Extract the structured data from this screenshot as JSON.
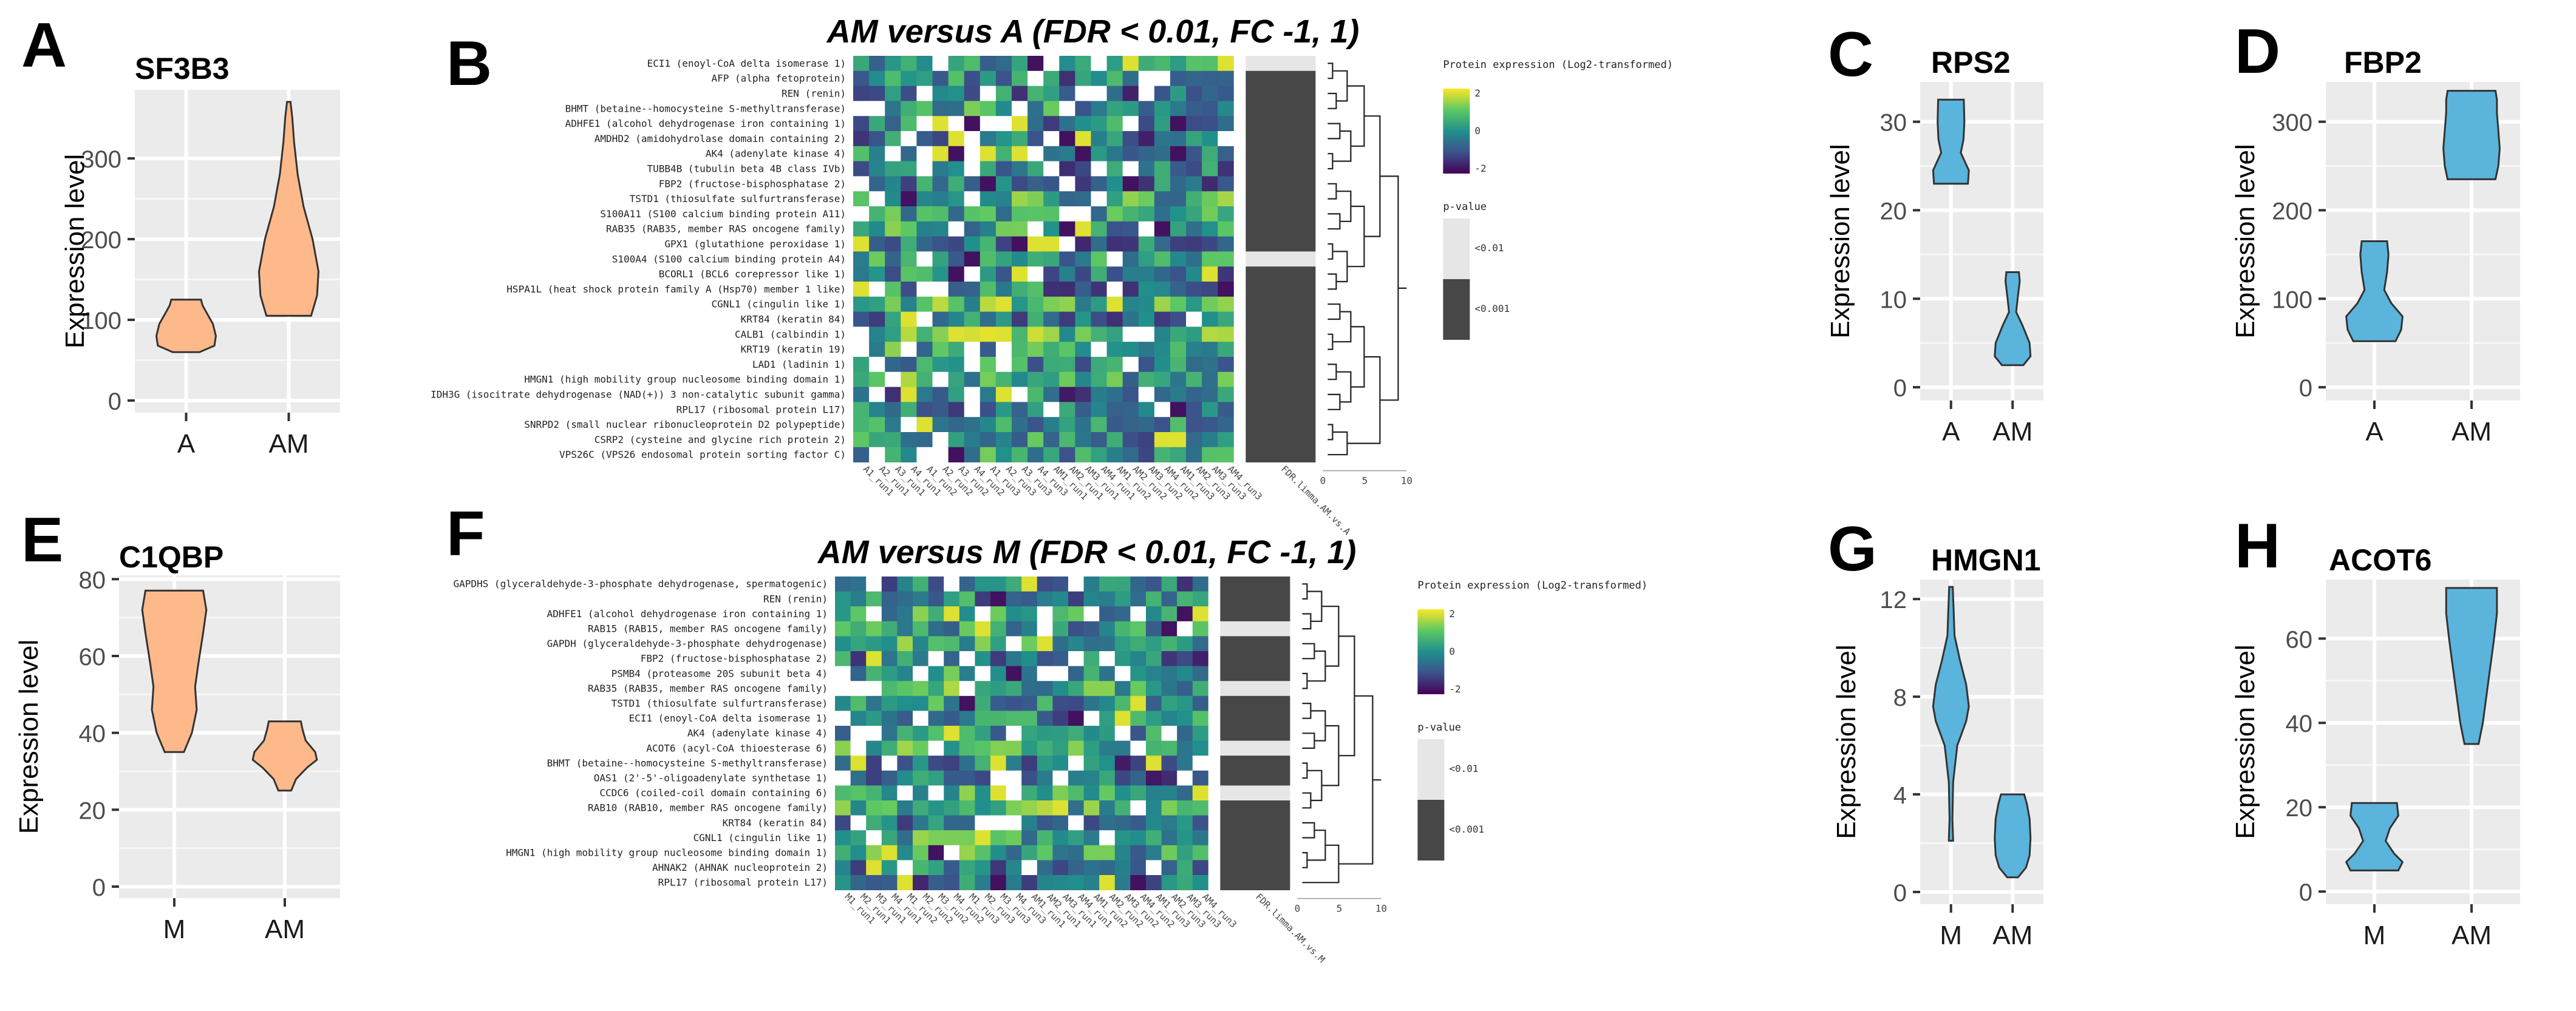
{
  "colors": {
    "orange": "#FDB98A",
    "blue": "#5AB4DC",
    "panel_bg": "#EBEBEB",
    "pvalue_light": "#E6E6E6",
    "pvalue_dark": "#474747",
    "heat_low": "#440154",
    "heat_mid": "#21908C",
    "heat_high": "#FDE725"
  },
  "chart_data": [
    {
      "type": "violin",
      "panel_letter": "A",
      "title": "SF3B3",
      "ylabel": "Expression level",
      "categories": [
        "A",
        "AM"
      ],
      "ylim": [
        -15,
        385
      ],
      "yticks": [
        0,
        100,
        200,
        300
      ],
      "color": "orange",
      "series": [
        {
          "name": "A",
          "min": 60,
          "max": 125,
          "profile": [
            [
              60,
              0.45
            ],
            [
              68,
              0.95
            ],
            [
              80,
              1.0
            ],
            [
              95,
              0.9
            ],
            [
              108,
              0.7
            ],
            [
              118,
              0.55
            ],
            [
              125,
              0.5
            ]
          ]
        },
        {
          "name": "AM",
          "min": 105,
          "max": 370,
          "profile": [
            [
              105,
              0.75
            ],
            [
              130,
              0.95
            ],
            [
              160,
              1.0
            ],
            [
              200,
              0.8
            ],
            [
              240,
              0.5
            ],
            [
              280,
              0.3
            ],
            [
              320,
              0.18
            ],
            [
              350,
              0.12
            ],
            [
              370,
              0.06
            ]
          ]
        }
      ]
    },
    {
      "type": "violin",
      "panel_letter": "C",
      "title": "RPS2",
      "ylabel": "Expression level",
      "categories": [
        "A",
        "AM"
      ],
      "ylim": [
        -1.5,
        34.5
      ],
      "yticks": [
        0,
        10,
        20,
        30
      ],
      "color": "blue",
      "series": [
        {
          "name": "A",
          "min": 23,
          "max": 32.5,
          "profile": [
            [
              23,
              0.95
            ],
            [
              24.5,
              1.0
            ],
            [
              26.5,
              0.55
            ],
            [
              28,
              0.7
            ],
            [
              30,
              0.75
            ],
            [
              32.5,
              0.72
            ]
          ]
        },
        {
          "name": "AM",
          "min": 2.5,
          "max": 13,
          "profile": [
            [
              2.5,
              0.6
            ],
            [
              3.5,
              1.0
            ],
            [
              5,
              0.95
            ],
            [
              7,
              0.55
            ],
            [
              8.5,
              0.2
            ],
            [
              10,
              0.28
            ],
            [
              12,
              0.4
            ],
            [
              13,
              0.35
            ]
          ]
        }
      ]
    },
    {
      "type": "violin",
      "panel_letter": "D",
      "title": "FBP2",
      "ylabel": "Expression level",
      "categories": [
        "A",
        "AM"
      ],
      "ylim": [
        -15,
        345
      ],
      "yticks": [
        0,
        100,
        200,
        300
      ],
      "color": "blue",
      "series": [
        {
          "name": "A",
          "min": 52,
          "max": 165,
          "profile": [
            [
              52,
              0.75
            ],
            [
              65,
              0.95
            ],
            [
              80,
              1.0
            ],
            [
              95,
              0.6
            ],
            [
              110,
              0.35
            ],
            [
              130,
              0.45
            ],
            [
              150,
              0.5
            ],
            [
              165,
              0.45
            ]
          ]
        },
        {
          "name": "AM",
          "min": 235,
          "max": 335,
          "profile": [
            [
              235,
              0.85
            ],
            [
              250,
              0.95
            ],
            [
              270,
              1.0
            ],
            [
              290,
              0.95
            ],
            [
              310,
              0.9
            ],
            [
              325,
              0.9
            ],
            [
              335,
              0.85
            ]
          ]
        }
      ]
    },
    {
      "type": "violin",
      "panel_letter": "E",
      "title": "C1QBP",
      "ylabel": "Expression level",
      "categories": [
        "M",
        "AM"
      ],
      "ylim": [
        -3,
        81
      ],
      "yticks": [
        0,
        20,
        40,
        60,
        80
      ],
      "color": "orange",
      "series": [
        {
          "name": "M",
          "min": 35,
          "max": 77,
          "profile": [
            [
              35,
              0.3
            ],
            [
              40,
              0.55
            ],
            [
              46,
              0.7
            ],
            [
              52,
              0.65
            ],
            [
              58,
              0.75
            ],
            [
              66,
              0.9
            ],
            [
              72,
              1.0
            ],
            [
              77,
              0.9
            ]
          ]
        },
        {
          "name": "AM",
          "min": 25,
          "max": 43,
          "profile": [
            [
              25,
              0.2
            ],
            [
              28,
              0.35
            ],
            [
              31,
              0.7
            ],
            [
              33,
              1.0
            ],
            [
              35,
              0.95
            ],
            [
              38,
              0.65
            ],
            [
              41,
              0.55
            ],
            [
              43,
              0.5
            ]
          ]
        }
      ]
    },
    {
      "type": "violin",
      "panel_letter": "G",
      "title": "HMGN1",
      "ylabel": "Expression level",
      "categories": [
        "M",
        "AM"
      ],
      "ylim": [
        -0.5,
        12.8
      ],
      "yticks": [
        0,
        4,
        8,
        12
      ],
      "color": "blue",
      "series": [
        {
          "name": "M",
          "min": 2.1,
          "max": 12.5,
          "profile": [
            [
              2.1,
              0.12
            ],
            [
              3,
              0.08
            ],
            [
              4.5,
              0.12
            ],
            [
              6,
              0.35
            ],
            [
              7,
              0.85
            ],
            [
              7.6,
              1.0
            ],
            [
              8.5,
              0.85
            ],
            [
              9.5,
              0.5
            ],
            [
              10.5,
              0.2
            ],
            [
              11.5,
              0.15
            ],
            [
              12.5,
              0.1
            ]
          ]
        },
        {
          "name": "AM",
          "min": 0.6,
          "max": 4,
          "profile": [
            [
              0.6,
              0.3
            ],
            [
              1,
              0.75
            ],
            [
              1.5,
              0.95
            ],
            [
              2.2,
              1.0
            ],
            [
              3,
              0.95
            ],
            [
              3.6,
              0.8
            ],
            [
              4,
              0.65
            ]
          ]
        }
      ]
    },
    {
      "type": "violin",
      "panel_letter": "H",
      "title": "ACOT6",
      "ylabel": "Expression level",
      "categories": [
        "M",
        "AM"
      ],
      "ylim": [
        -3,
        74
      ],
      "yticks": [
        0,
        20,
        40,
        60
      ],
      "color": "blue",
      "series": [
        {
          "name": "M",
          "min": 5,
          "max": 21,
          "profile": [
            [
              5,
              0.85
            ],
            [
              7,
              1.0
            ],
            [
              9,
              0.7
            ],
            [
              12,
              0.4
            ],
            [
              15,
              0.55
            ],
            [
              18,
              0.85
            ],
            [
              21,
              0.8
            ]
          ]
        },
        {
          "name": "AM",
          "min": 35,
          "max": 72,
          "profile": [
            [
              35,
              0.25
            ],
            [
              40,
              0.4
            ],
            [
              45,
              0.5
            ],
            [
              50,
              0.6
            ],
            [
              55,
              0.7
            ],
            [
              60,
              0.8
            ],
            [
              66,
              0.9
            ],
            [
              72,
              0.9
            ]
          ]
        }
      ]
    },
    {
      "type": "heatmap",
      "panel_letter": "B",
      "title": "AM versus A (FDR < 0.01, FC -1, 1)",
      "rows": [
        "ECI1 (enoyl-CoA delta isomerase 1)",
        "AFP (alpha fetoprotein)",
        "REN (renin)",
        "BHMT (betaine--homocysteine S-methyltransferase)",
        "ADHFE1 (alcohol dehydrogenase iron containing 1)",
        "AMDHD2 (amidohydrolase domain containing 2)",
        "AK4 (adenylate kinase 4)",
        "TUBB4B (tubulin beta 4B class IVb)",
        "FBP2 (fructose-bisphosphatase 2)",
        "TSTD1 (thiosulfate sulfurtransferase)",
        "S100A11 (S100 calcium binding protein A11)",
        "RAB35 (RAB35, member RAS oncogene family)",
        "GPX1 (glutathione peroxidase 1)",
        "S100A4 (S100 calcium binding protein A4)",
        "BCORL1 (BCL6 corepressor like 1)",
        "HSPA1L (heat shock protein family A (Hsp70) member 1 like)",
        "CGNL1 (cingulin like 1)",
        "KRT84 (keratin 84)",
        "CALB1 (calbindin 1)",
        "KRT19 (keratin 19)",
        "LAD1 (ladinin 1)",
        "HMGN1 (high mobility group nucleosome binding domain 1)",
        "IDH3G (isocitrate dehydrogenase (NAD(+)) 3 non-catalytic subunit gamma)",
        "RPL17 (ribosomal protein L17)",
        "SNRPD2 (small nuclear ribonucleoprotein D2 polypeptide)",
        "CSRP2 (cysteine and glycine rich protein 2)",
        "VPS26C (VPS26 endosomal protein sorting factor C)"
      ],
      "columns": [
        "A1_run1",
        "A2_run1",
        "A3_run1",
        "A4_run1",
        "A1_run2",
        "A2_run2",
        "A3_run2",
        "A4_run2",
        "A1_run3",
        "A2_run3",
        "A3_run3",
        "A4_run3",
        "AM1_run1",
        "AM2_run1",
        "AM3_run1",
        "AM4_run1",
        "AM1_run2",
        "AM2_run2",
        "AM3_run2",
        "AM4_run2",
        "AM1_run3",
        "AM2_run3",
        "AM3_run3",
        "AM4_run3"
      ],
      "pvalue_column_label": "FDR.limma.AM.vs.A",
      "pvalue_light_rows": [
        0,
        13
      ],
      "dendro_axis_ticks": [
        "0",
        "5",
        "10"
      ],
      "legend_title": "Protein expression (Log2-transformed)",
      "legend_ticks": [
        "2",
        "0",
        "-2"
      ],
      "pvalue_legend_title": "p-value",
      "pvalue_legend_labels": [
        "<0.01",
        "<0.001"
      ]
    },
    {
      "type": "heatmap",
      "panel_letter": "F",
      "title": "AM versus M (FDR < 0.01, FC -1, 1)",
      "rows": [
        "GAPDHS (glyceraldehyde-3-phosphate dehydrogenase, spermatogenic)",
        "REN (renin)",
        "ADHFE1 (alcohol dehydrogenase iron containing 1)",
        "RAB15 (RAB15, member RAS oncogene family)",
        "GAPDH (glyceraldehyde-3-phosphate dehydrogenase)",
        "FBP2 (fructose-bisphosphatase 2)",
        "PSMB4 (proteasome 20S subunit beta 4)",
        "RAB35 (RAB35, member RAS oncogene family)",
        "TSTD1 (thiosulfate sulfurtransferase)",
        "ECI1 (enoyl-CoA delta isomerase 1)",
        "AK4 (adenylate kinase 4)",
        "ACOT6 (acyl-CoA thioesterase 6)",
        "BHMT (betaine--homocysteine S-methyltransferase)",
        "OAS1 (2'-5'-oligoadenylate synthetase 1)",
        "CCDC6 (coiled-coil domain containing 6)",
        "RAB10 (RAB10, member RAS oncogene family)",
        "KRT84 (keratin 84)",
        "CGNL1 (cingulin like 1)",
        "HMGN1 (high mobility group nucleosome binding domain 1)",
        "AHNAK2 (AHNAK nucleoprotein 2)",
        "RPL17 (ribosomal protein L17)"
      ],
      "columns": [
        "M1_run1",
        "M2_run1",
        "M3_run1",
        "M4_run1",
        "M1_run2",
        "M2_run2",
        "M3_run2",
        "M4_run2",
        "M1_run3",
        "M2_run3",
        "M3_run3",
        "M4_run3",
        "AM1_run1",
        "AM2_run1",
        "AM3_run1",
        "AM4_run1",
        "AM1_run2",
        "AM2_run2",
        "AM3_run2",
        "AM4_run2",
        "AM1_run3",
        "AM2_run3",
        "AM3_run3",
        "AM4_run3"
      ],
      "pvalue_column_label": "FDR.limma.AM.vs.M",
      "pvalue_light_rows": [
        3,
        7,
        11,
        14
      ],
      "dendro_axis_ticks": [
        "0",
        "5",
        "10"
      ],
      "legend_title": "Protein expression (Log2-transformed)",
      "legend_ticks": [
        "2",
        "0",
        "-2"
      ],
      "pvalue_legend_title": "p-value",
      "pvalue_legend_labels": [
        "<0.01",
        "<0.001"
      ]
    }
  ]
}
